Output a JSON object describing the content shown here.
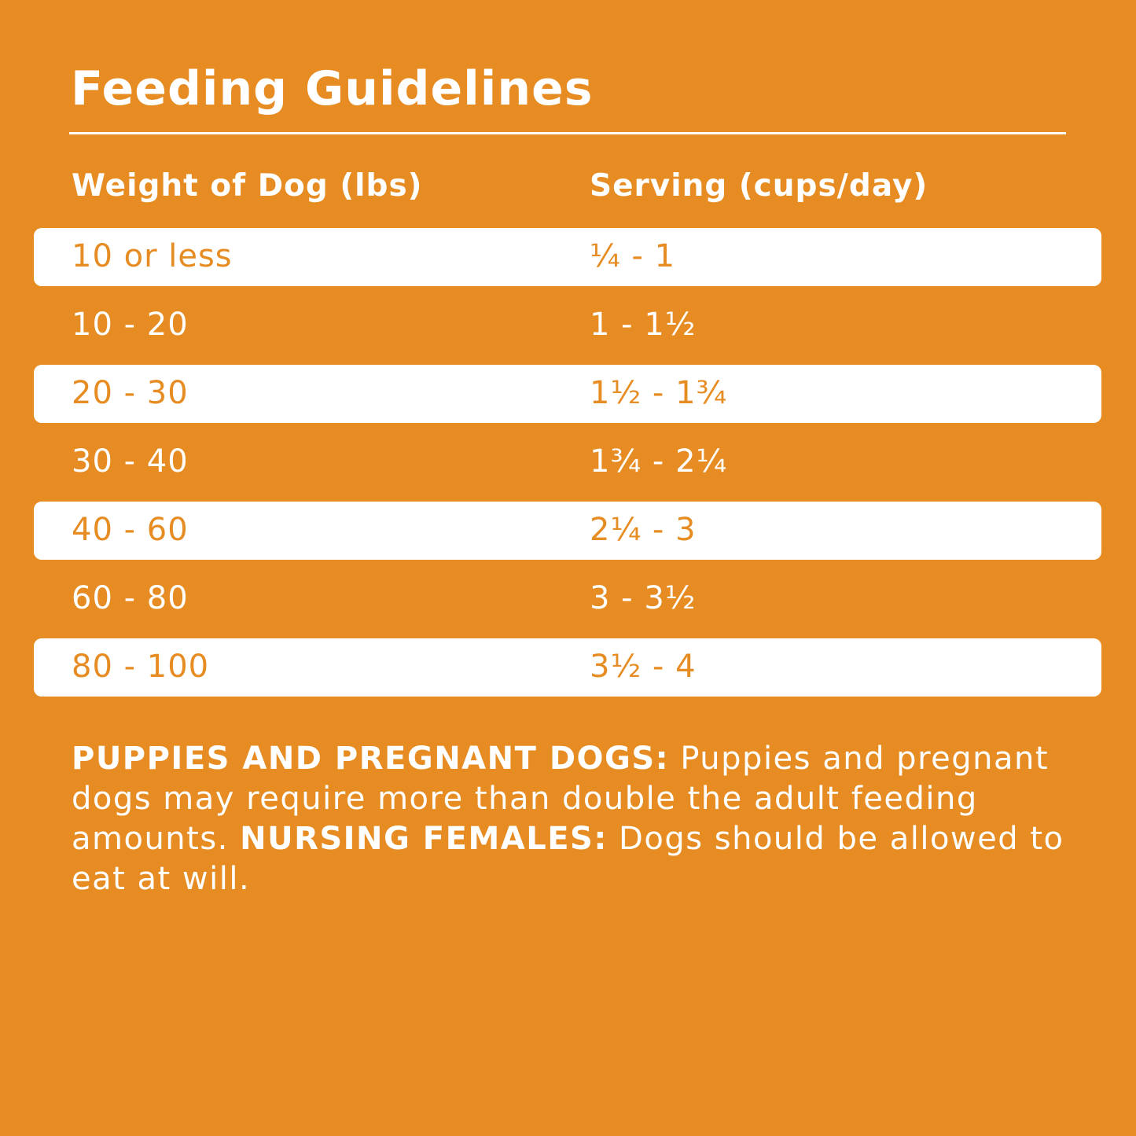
{
  "title": "Feeding Guidelines",
  "colors": {
    "background": "#E68C22",
    "row_highlight": "#FFFFFF"
  },
  "table": {
    "headers": [
      "Weight of Dog (lbs)",
      "Serving (cups/day)"
    ],
    "rows": [
      {
        "weight": "10 or less",
        "serving": "¼ - 1"
      },
      {
        "weight": "10 - 20",
        "serving": "1 - 1½"
      },
      {
        "weight": "20 - 30",
        "serving": "1½ - 1¾"
      },
      {
        "weight": "30 - 40",
        "serving": "1¾ - 2¼"
      },
      {
        "weight": "40 - 60",
        "serving": "2¼ - 3"
      },
      {
        "weight": "60 - 80",
        "serving": "3 - 3½"
      },
      {
        "weight": "80 - 100",
        "serving": "3½ - 4"
      }
    ]
  },
  "note": {
    "label1": "PUPPIES AND PREGNANT DOGS:",
    "text1": " Puppies and pregnant dogs may require more than double the adult feeding amounts. ",
    "label2": "NURSING FEMALES:",
    "text2": " Dogs should be allowed to eat at will."
  }
}
